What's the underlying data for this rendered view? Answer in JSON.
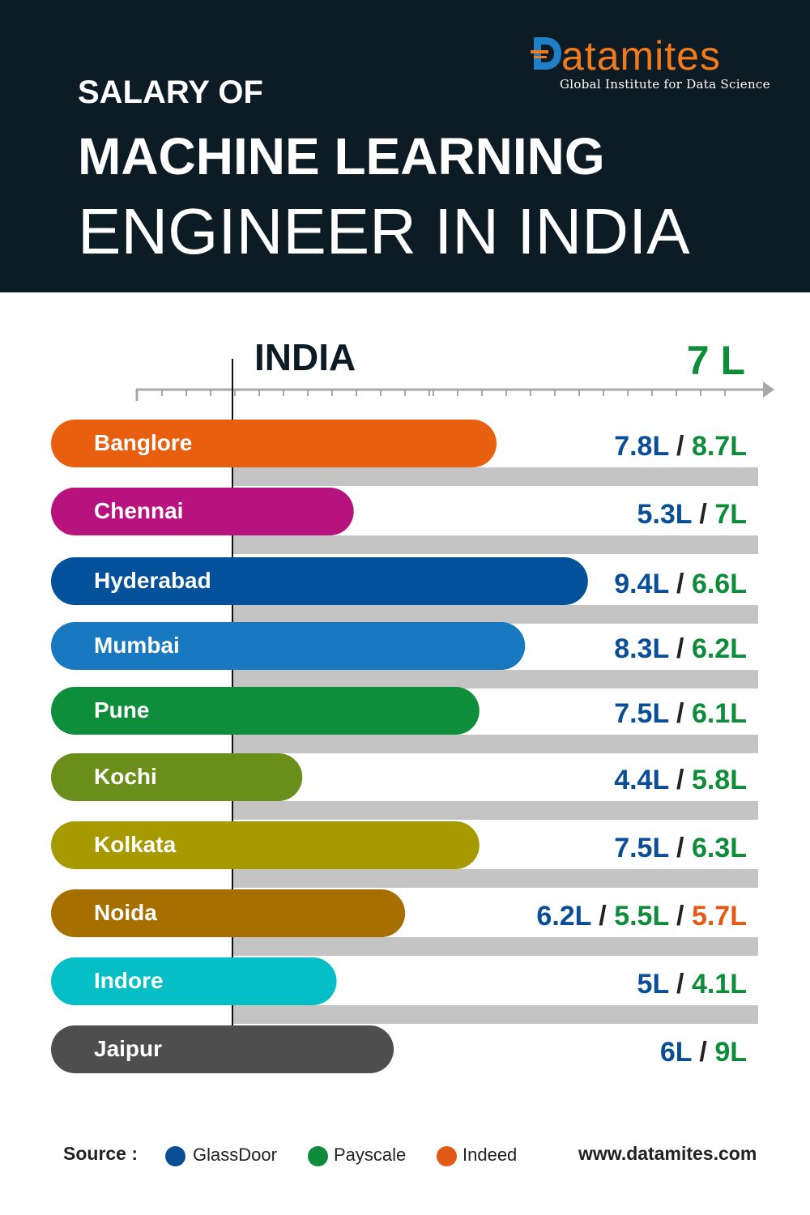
{
  "header": {
    "title_line1": "SALARY OF",
    "title_line2": "MACHINE LEARNING",
    "title_line3": "ENGINEER IN INDIA"
  },
  "logo": {
    "wordmark": "Datamites",
    "wordmark_rest": "atamites",
    "tagline": "Global Institute for Data Science"
  },
  "chart_data": {
    "type": "bar",
    "title": "SALARY OF MACHINE LEARNING ENGINEER IN INDIA",
    "reference": {
      "label": "INDIA",
      "value_label": "7 L",
      "value": 7
    },
    "categories": [
      "Banglore",
      "Chennai",
      "Hyderabad",
      "Mumbai",
      "Pune",
      "Kochi",
      "Kolkata",
      "Noida",
      "Indore",
      "Jaipur"
    ],
    "bar_colors": [
      "#e8600f",
      "#b8127e",
      "#03509b",
      "#1878c0",
      "#0e8e3b",
      "#6a8e1a",
      "#a69a00",
      "#a66f00",
      "#06bfc6",
      "#4e4e4e"
    ],
    "series": [
      {
        "name": "GlassDoor",
        "color": "#0a4e96",
        "labels": [
          "7.8L",
          "5.3L",
          "9.4L",
          "8.3L",
          "7.5L",
          "4.4L",
          "7.5L",
          "6.2L",
          "5L",
          "6L"
        ],
        "values": [
          7.8,
          5.3,
          9.4,
          8.3,
          7.5,
          4.4,
          7.5,
          6.2,
          5.0,
          6.0
        ]
      },
      {
        "name": "Payscale",
        "color": "#0f8c3a",
        "labels": [
          "8.7L",
          "7L",
          "6.6L",
          "6.2L",
          "6.1L",
          "5.8L",
          "6.3L",
          "5.5L",
          "4.1L",
          "9L"
        ],
        "values": [
          8.7,
          7.0,
          6.6,
          6.2,
          6.1,
          5.8,
          6.3,
          5.5,
          4.1,
          9.0
        ]
      },
      {
        "name": "Indeed",
        "color": "#e25a16",
        "labels": [
          null,
          null,
          null,
          null,
          null,
          null,
          null,
          "5.7L",
          null,
          null
        ],
        "values": [
          null,
          null,
          null,
          null,
          null,
          null,
          null,
          5.7,
          null,
          null
        ]
      }
    ]
  },
  "legend": {
    "source_label": "Source :",
    "items": [
      {
        "label": "GlassDoor",
        "color": "#0a4e96"
      },
      {
        "label": "Payscale",
        "color": "#0f8c3a"
      },
      {
        "label": "Indeed",
        "color": "#e25a16"
      }
    ],
    "website": "www.datamites.com"
  }
}
